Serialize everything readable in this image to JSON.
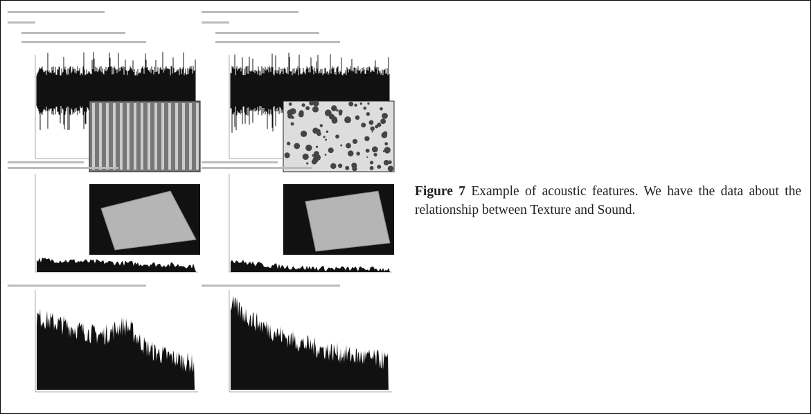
{
  "figure": {
    "label": "Figure 7",
    "caption": "Example of acoustic features. We have the data about the relationship between Texture and Sound."
  }
}
